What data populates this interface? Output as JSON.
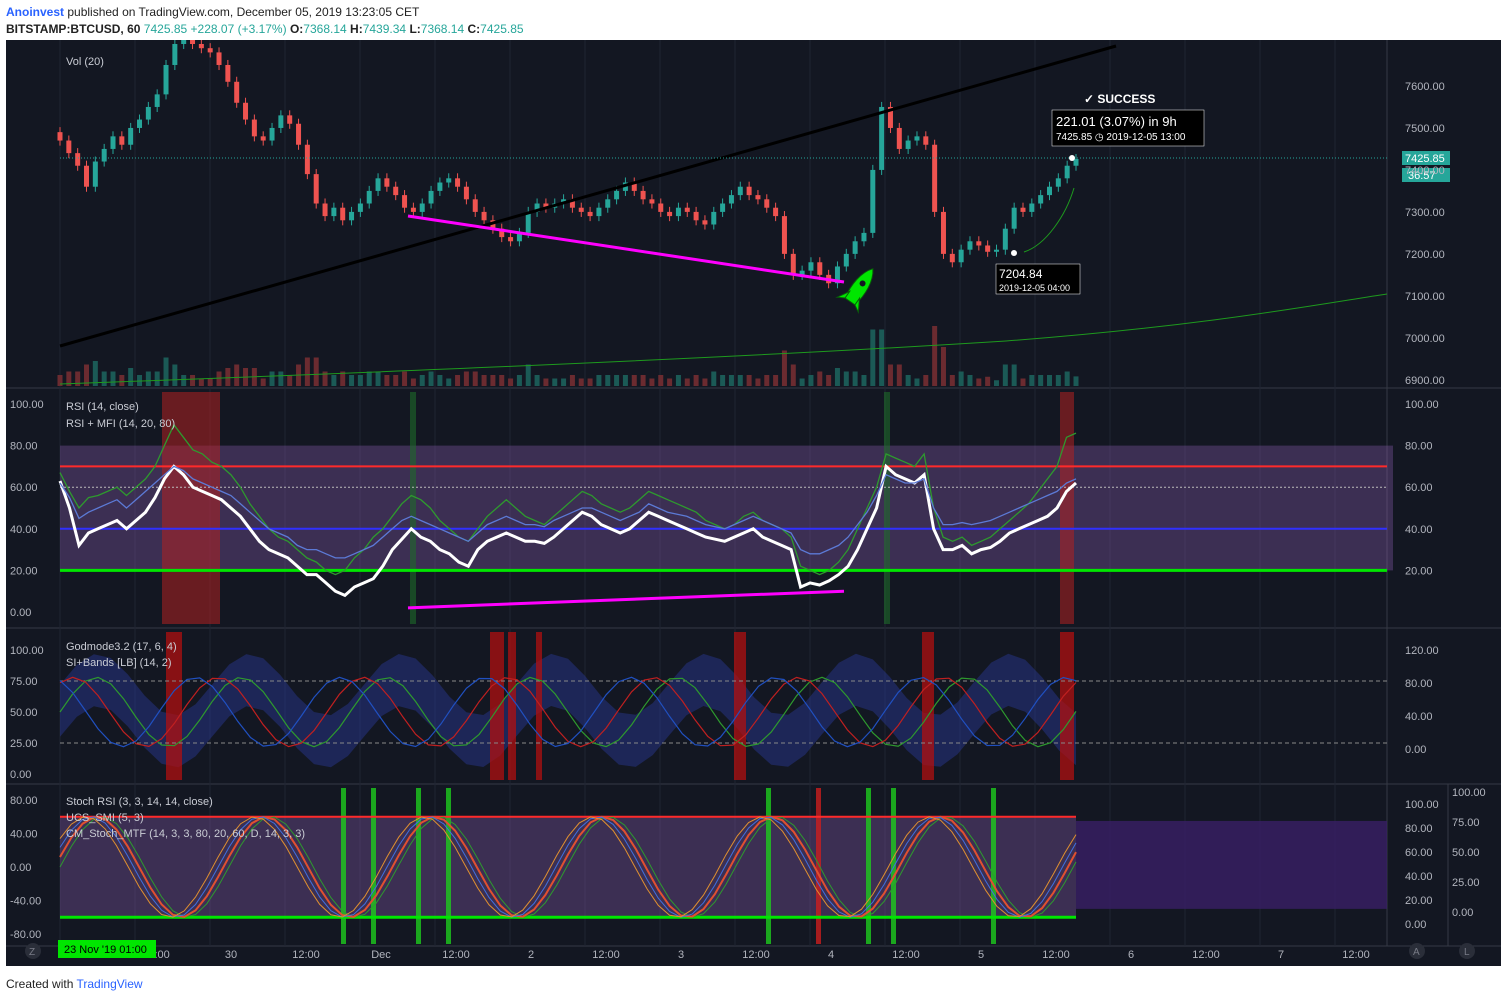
{
  "header": {
    "author": "Anoinvest",
    "published_text": "published on TradingView.com, December 05, 2019 13:23:05 CET",
    "symbol": "BITSTAMP:BTCUSD, 60",
    "last": "7425.85",
    "change": "+228.07 (+3.17%)",
    "open_label": "O:",
    "open": "7368.14",
    "high_label": "H:",
    "high": "7439.34",
    "low_label": "L:",
    "low": "7368.14",
    "close_label": "C:",
    "close": "7425.85"
  },
  "footer": {
    "created_with": "Created with",
    "brand": "TradingView"
  },
  "chart_data": [
    {
      "type": "candlestick",
      "pane": "price",
      "legend": "Vol (20)",
      "price_axis": [
        7600.0,
        7500.0,
        7400.0,
        7300.0,
        7200.0,
        7100.0,
        7000.0,
        6900.0
      ],
      "ylim": [
        6890,
        7700
      ],
      "last_price_label": "7425.85",
      "countdown_label": "36:57",
      "annotations": {
        "success_text": "✓ SUCCESS",
        "target_text": "221.01 (3.07%) in 9h",
        "target_sub": "7425.85 ◷ 2019-12-05  13:00",
        "low_text": "7204.84",
        "low_sub": "2019-12-05 04:00"
      },
      "close_values": [
        7470,
        7440,
        7410,
        7360,
        7420,
        7450,
        7480,
        7460,
        7500,
        7520,
        7550,
        7580,
        7650,
        7700,
        7720,
        7700,
        7690,
        7680,
        7650,
        7610,
        7560,
        7520,
        7480,
        7470,
        7500,
        7530,
        7510,
        7460,
        7390,
        7320,
        7290,
        7310,
        7280,
        7300,
        7320,
        7350,
        7380,
        7360,
        7340,
        7310,
        7300,
        7320,
        7350,
        7370,
        7380,
        7360,
        7330,
        7300,
        7280,
        7260,
        7240,
        7230,
        7250,
        7300,
        7320,
        7310,
        7320,
        7330,
        7310,
        7300,
        7290,
        7310,
        7330,
        7350,
        7370,
        7350,
        7330,
        7320,
        7300,
        7290,
        7310,
        7300,
        7280,
        7270,
        7300,
        7320,
        7340,
        7360,
        7340,
        7330,
        7310,
        7290,
        7200,
        7150,
        7160,
        7180,
        7150,
        7130,
        7170,
        7200,
        7230,
        7250,
        7400,
        7550,
        7500,
        7450,
        7470,
        7480,
        7460,
        7300,
        7200,
        7180,
        7210,
        7230,
        7220,
        7205,
        7210,
        7260,
        7310,
        7300,
        7320,
        7340,
        7360,
        7380,
        7410,
        7426
      ],
      "volume_ylim": [
        0,
        100
      ]
    },
    {
      "type": "line",
      "pane": "rsi",
      "legend": [
        "RSI (14, close)",
        "RSI + MFI (14, 20, 80)"
      ],
      "left_axis": [
        100.0,
        80.0,
        60.0,
        40.0,
        20.0,
        0.0
      ],
      "right_axis": [
        100.0,
        80.0,
        60.0,
        40.0,
        20.0
      ],
      "series": [
        {
          "values": [
            63,
            50,
            32,
            38,
            40,
            42,
            44,
            40,
            44,
            48,
            55,
            64,
            70,
            66,
            60,
            58,
            56,
            54,
            50,
            46,
            40,
            34,
            30,
            28,
            26,
            22,
            18,
            18,
            14,
            10,
            8,
            12,
            14,
            16,
            22,
            30,
            35,
            40,
            36,
            34,
            30,
            28,
            24,
            22,
            30,
            34,
            36,
            38,
            36,
            34,
            34,
            33,
            36,
            40,
            44,
            48,
            46,
            42,
            40,
            38,
            40,
            44,
            48,
            46,
            44,
            42,
            40,
            38,
            36,
            35,
            34,
            36,
            38,
            40,
            36,
            34,
            32,
            30,
            12,
            14,
            13,
            15,
            18,
            22,
            30,
            40,
            50,
            70,
            66,
            64,
            62,
            66,
            40,
            30,
            30,
            32,
            28,
            30,
            31,
            34,
            38,
            40,
            42,
            44,
            46,
            50,
            58,
            62
          ]
        },
        {
          "values": [
            67,
            58,
            50,
            55,
            56,
            58,
            60,
            56,
            60,
            64,
            70,
            80,
            90,
            84,
            78,
            76,
            72,
            70,
            66,
            60,
            52,
            46,
            40,
            36,
            34,
            30,
            26,
            24,
            20,
            18,
            20,
            26,
            30,
            36,
            40,
            46,
            52,
            56,
            54,
            50,
            44,
            40,
            36,
            34,
            40,
            46,
            50,
            54,
            50,
            46,
            44,
            42,
            46,
            50,
            54,
            58,
            56,
            52,
            50,
            48,
            50,
            54,
            58,
            56,
            54,
            52,
            50,
            48,
            44,
            42,
            40,
            42,
            46,
            48,
            44,
            42,
            40,
            36,
            22,
            20,
            18,
            20,
            24,
            30,
            40,
            50,
            60,
            76,
            74,
            72,
            70,
            76,
            50,
            36,
            34,
            36,
            32,
            34,
            36,
            40,
            44,
            48,
            52,
            58,
            64,
            70,
            84,
            86
          ]
        },
        {
          "values": [
            62,
            55,
            45,
            48,
            50,
            52,
            54,
            50,
            54,
            58,
            62,
            66,
            70,
            68,
            64,
            62,
            60,
            58,
            56,
            52,
            48,
            44,
            40,
            38,
            36,
            32,
            30,
            30,
            28,
            26,
            26,
            28,
            30,
            32,
            36,
            40,
            44,
            46,
            44,
            42,
            40,
            38,
            36,
            34,
            38,
            42,
            44,
            46,
            44,
            42,
            42,
            41,
            44,
            46,
            48,
            50,
            50,
            48,
            46,
            44,
            46,
            48,
            52,
            50,
            48,
            47,
            46,
            44,
            42,
            41,
            40,
            42,
            44,
            46,
            44,
            42,
            40,
            38,
            30,
            28,
            28,
            30,
            32,
            36,
            42,
            48,
            56,
            66,
            64,
            62,
            62,
            64,
            50,
            42,
            42,
            43,
            42,
            43,
            44,
            46,
            48,
            50,
            52,
            54,
            56,
            58,
            62,
            64
          ]
        }
      ],
      "hlines": {
        "upper": 70,
        "middle": 60,
        "lower_blue": 40,
        "lower_green": 20
      }
    },
    {
      "type": "line",
      "pane": "godmode",
      "legend": [
        "Godmode3.2 (17, 6, 4)",
        "SI+Bands [LB] (14, 2)"
      ],
      "left_axis": [
        100.0,
        75.0,
        50.0,
        25.0,
        0.0
      ],
      "right_axis": [
        120.0,
        80.0,
        40.0,
        0.0
      ]
    },
    {
      "type": "line",
      "pane": "stoch",
      "legend": [
        "Stoch RSI (3, 3, 14, 14, close)",
        "UCS_SMI (5, 3)",
        "CM_Stoch_MTF (14, 3, 3, 80, 20, 60, D, 14, 3, 3)"
      ],
      "left_axis": [
        80.0,
        40.0,
        0.0,
        -40.0,
        -80.0
      ],
      "mid_axis": [
        100.0,
        80.0,
        60.0,
        40.0,
        20.0,
        0.0
      ],
      "right_axis": [
        100.0,
        75.0,
        50.0,
        25.0,
        0.0
      ]
    }
  ],
  "time_axis": {
    "labels": [
      "12:00",
      "30",
      "12:00",
      "Dec",
      "12:00",
      "2",
      "12:00",
      "3",
      "12:00",
      "4",
      "12:00",
      "5",
      "12:00",
      "6",
      "12:00",
      "7",
      "12:00"
    ],
    "cursor_label": "23 Nov '19   01:00",
    "zoom_left": "Z",
    "btn_a": "A",
    "btn_l": "L"
  },
  "colors": {
    "bg": "#131722",
    "up": "#26a69a",
    "down": "#ef5350",
    "magenta": "#ff00ff",
    "green_line": "#00e600",
    "red_line": "#ff2a2a",
    "blue_line": "#3030ff"
  }
}
